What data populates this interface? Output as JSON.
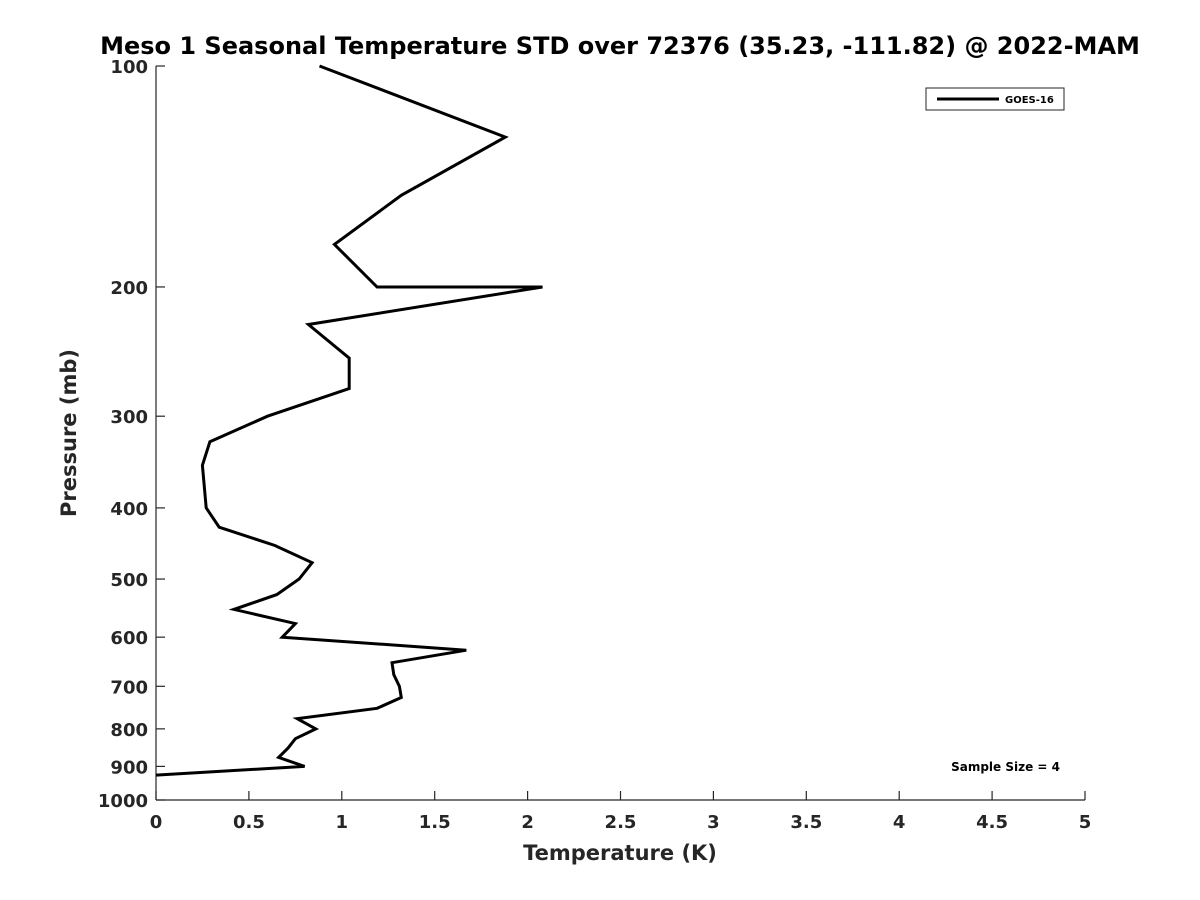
{
  "chart_data": {
    "type": "line",
    "title": "Meso 1 Seasonal Temperature STD over 72376 (35.23, -111.82) @ 2022-MAM",
    "xlabel": "Temperature (K)",
    "ylabel": "Pressure (mb)",
    "xlim": [
      0,
      5
    ],
    "ylim": [
      100,
      1000
    ],
    "y_scale": "log",
    "y_reversed": true,
    "grid": false,
    "legend_position": "top-right",
    "x_ticks": [
      "0",
      "0.5",
      "1",
      "1.5",
      "2",
      "2.5",
      "3",
      "3.5",
      "4",
      "4.5",
      "5"
    ],
    "y_ticks": [
      "100",
      "200",
      "300",
      "400",
      "500",
      "600",
      "700",
      "800",
      "900",
      "1000"
    ],
    "series": [
      {
        "name": "GOES-16",
        "color": "#000000",
        "points": [
          {
            "x": 0.88,
            "y": 100
          },
          {
            "x": 1.88,
            "y": 125
          },
          {
            "x": 1.32,
            "y": 150
          },
          {
            "x": 0.96,
            "y": 175
          },
          {
            "x": 1.19,
            "y": 200
          },
          {
            "x": 2.08,
            "y": 200
          },
          {
            "x": 0.82,
            "y": 225
          },
          {
            "x": 1.04,
            "y": 250
          },
          {
            "x": 1.04,
            "y": 275
          },
          {
            "x": 0.6,
            "y": 300
          },
          {
            "x": 0.29,
            "y": 325
          },
          {
            "x": 0.25,
            "y": 350
          },
          {
            "x": 0.27,
            "y": 400
          },
          {
            "x": 0.34,
            "y": 425
          },
          {
            "x": 0.64,
            "y": 450
          },
          {
            "x": 0.84,
            "y": 475
          },
          {
            "x": 0.77,
            "y": 500
          },
          {
            "x": 0.65,
            "y": 525
          },
          {
            "x": 0.42,
            "y": 550
          },
          {
            "x": 0.75,
            "y": 575
          },
          {
            "x": 0.68,
            "y": 600
          },
          {
            "x": 1.67,
            "y": 625
          },
          {
            "x": 1.27,
            "y": 650
          },
          {
            "x": 1.28,
            "y": 675
          },
          {
            "x": 1.31,
            "y": 700
          },
          {
            "x": 1.32,
            "y": 725
          },
          {
            "x": 1.19,
            "y": 750
          },
          {
            "x": 0.76,
            "y": 775
          },
          {
            "x": 0.86,
            "y": 800
          },
          {
            "x": 0.75,
            "y": 825
          },
          {
            "x": 0.71,
            "y": 850
          },
          {
            "x": 0.66,
            "y": 875
          },
          {
            "x": 0.8,
            "y": 900
          },
          {
            "x": 0.0,
            "y": 925
          }
        ]
      }
    ],
    "annotation": "Sample Size = 4"
  }
}
